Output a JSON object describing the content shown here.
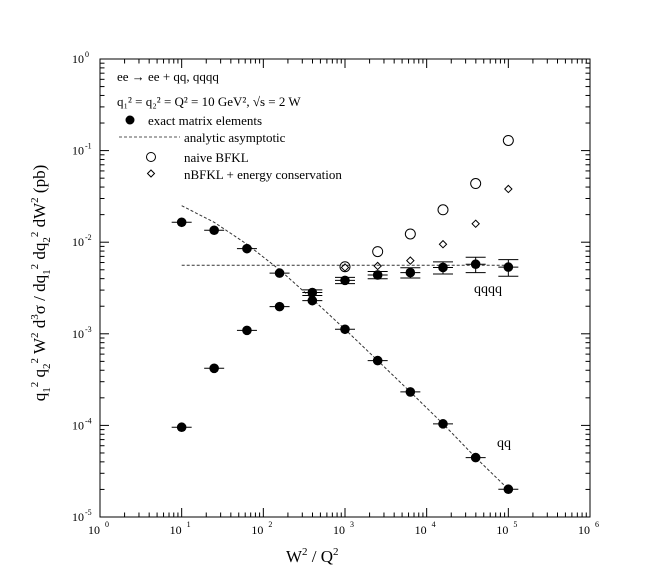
{
  "chart_data": {
    "type": "scatter",
    "xscale": "log",
    "yscale": "log",
    "xlim": [
      1,
      1000000
    ],
    "ylim": [
      1e-05,
      1
    ],
    "xlabel": "W² / Q²",
    "ylabel": "q₁² q₂² W² d³σ / dq₁² dq₂² dW² (pb)",
    "x_ticks": [
      {
        "base": "10",
        "exp": "0",
        "value": 1
      },
      {
        "base": "10",
        "exp": "1",
        "value": 10
      },
      {
        "base": "10",
        "exp": "2",
        "value": 100
      },
      {
        "base": "10",
        "exp": "3",
        "value": 1000
      },
      {
        "base": "10",
        "exp": "4",
        "value": 10000
      },
      {
        "base": "10",
        "exp": "5",
        "value": 100000
      },
      {
        "base": "10",
        "exp": "6",
        "value": 1000000
      }
    ],
    "y_ticks": [
      {
        "base": "10",
        "exp": "-5",
        "value": 1e-05
      },
      {
        "base": "10",
        "exp": "-4",
        "value": 0.0001
      },
      {
        "base": "10",
        "exp": "-3",
        "value": 0.001
      },
      {
        "base": "10",
        "exp": "-2",
        "value": 0.01
      },
      {
        "base": "10",
        "exp": "-1",
        "value": 0.1
      },
      {
        "base": "10",
        "exp": "0",
        "value": 1
      }
    ],
    "title_lines": [
      "ee → ee + qq, qqqq",
      "q₁² = q₂² = Q² = 10 GeV², √s = 2 W"
    ],
    "series": [
      {
        "name": "exact matrix elements (qq)",
        "marker": "filled-circle",
        "points": [
          {
            "x": 10,
            "y": 0.0165
          },
          {
            "x": 25,
            "y": 0.0135
          },
          {
            "x": 63,
            "y": 0.0085
          },
          {
            "x": 158,
            "y": 0.0046
          },
          {
            "x": 398,
            "y": 0.0023
          },
          {
            "x": 1000,
            "y": 0.00112
          },
          {
            "x": 2512,
            "y": 0.00051
          },
          {
            "x": 6310,
            "y": 0.000232
          },
          {
            "x": 15849,
            "y": 0.000104
          },
          {
            "x": 39811,
            "y": 4.45e-05
          },
          {
            "x": 100000,
            "y": 2.01e-05
          }
        ]
      },
      {
        "name": "exact matrix elements (qqqq)",
        "marker": "filled-circle",
        "points": [
          {
            "x": 10,
            "y": 9.55e-05,
            "err": 0.0
          },
          {
            "x": 25,
            "y": 0.00042,
            "err": 0.0
          },
          {
            "x": 63,
            "y": 0.00109,
            "err": 0.0
          },
          {
            "x": 158,
            "y": 0.00198,
            "err": 0.0
          },
          {
            "x": 398,
            "y": 0.00282,
            "err": 0.0002
          },
          {
            "x": 1000,
            "y": 0.00383,
            "err": 0.0003
          },
          {
            "x": 2512,
            "y": 0.00439,
            "err": 0.0004
          },
          {
            "x": 6310,
            "y": 0.00466,
            "err": 0.0006
          },
          {
            "x": 15849,
            "y": 0.0053,
            "err": 0.0008
          },
          {
            "x": 39811,
            "y": 0.00575,
            "err": 0.0011
          },
          {
            "x": 100000,
            "y": 0.00535,
            "err": 0.0011
          }
        ]
      },
      {
        "name": "naive BFKL",
        "marker": "open-circle",
        "points": [
          {
            "x": 1000,
            "y": 0.0054
          },
          {
            "x": 2512,
            "y": 0.0079
          },
          {
            "x": 6310,
            "y": 0.0123
          },
          {
            "x": 15849,
            "y": 0.0226
          },
          {
            "x": 39811,
            "y": 0.0437
          },
          {
            "x": 100000,
            "y": 0.129
          }
        ]
      },
      {
        "name": "nBFKL + energy conservation",
        "marker": "open-diamond",
        "points": [
          {
            "x": 1000,
            "y": 0.0053
          },
          {
            "x": 2512,
            "y": 0.0055
          },
          {
            "x": 6310,
            "y": 0.0063
          },
          {
            "x": 15849,
            "y": 0.0095
          },
          {
            "x": 39811,
            "y": 0.0159
          },
          {
            "x": 100000,
            "y": 0.0381
          }
        ]
      },
      {
        "name": "analytic asymptotic (qq)",
        "style": "dashed-line",
        "points": [
          {
            "x": 10,
            "y": 0.025
          },
          {
            "x": 25,
            "y": 0.0165
          },
          {
            "x": 63,
            "y": 0.0095
          },
          {
            "x": 158,
            "y": 0.005
          },
          {
            "x": 398,
            "y": 0.0024
          },
          {
            "x": 1000,
            "y": 0.00112
          },
          {
            "x": 2512,
            "y": 0.00051
          },
          {
            "x": 6310,
            "y": 0.000232
          },
          {
            "x": 15849,
            "y": 0.000104
          },
          {
            "x": 39811,
            "y": 4.45e-05
          },
          {
            "x": 100000,
            "y": 2.01e-05
          }
        ]
      },
      {
        "name": "analytic asymptotic (qqqq)",
        "style": "dashed-line",
        "points": [
          {
            "x": 10,
            "y": 0.0056
          },
          {
            "x": 100000,
            "y": 0.0056
          }
        ]
      }
    ],
    "legend": [
      {
        "label": "exact matrix elements",
        "marker": "filled-circle"
      },
      {
        "label": "analytic asymptotic",
        "marker": "dashed-line"
      },
      {
        "label": "naive BFKL",
        "marker": "open-circle"
      },
      {
        "label": "nBFKL + energy conservation",
        "marker": "open-diamond"
      }
    ],
    "legend_position": "top-left",
    "annotations": [
      {
        "text": "qqqq",
        "x": 100000,
        "y": 0.0031
      },
      {
        "text": "qq",
        "x": 100000,
        "y": 7e-05
      }
    ]
  }
}
